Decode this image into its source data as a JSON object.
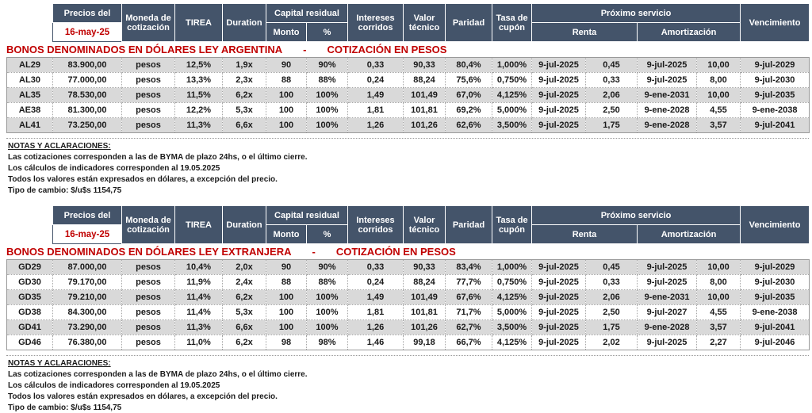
{
  "colors": {
    "header_bg": "#44546A",
    "header_text": "#FFFFFF",
    "accent_red": "#C00000",
    "row_alt_gray": "#D9D9D9",
    "row_white": "#FFFFFF",
    "dotted_border": "#A6A6A6"
  },
  "columns": [
    "ticker",
    "precio",
    "moneda",
    "tirea",
    "duration",
    "capital-monto",
    "capital-pct",
    "intereses-corridos",
    "valor-tecnico",
    "paridad",
    "tasa-cupon",
    "renta-fecha",
    "renta-monto",
    "amortizacion-fecha",
    "amortizacion-monto",
    "vencimiento"
  ],
  "header": {
    "precios_label": "Precios del",
    "price_date": "16-may-25",
    "moneda": "Moneda de cotización",
    "tirea": "TIREA",
    "duration": "Duration",
    "capital_residual": "Capital residual",
    "monto": "Monto",
    "pct": "%",
    "intereses": "Intereses corridos",
    "valor_tecnico": "Valor técnico",
    "paridad": "Paridad",
    "tasa_cupon": "Tasa de cupón",
    "proximo_servicio": "Próximo servicio",
    "renta": "Renta",
    "amortizacion": "Amortización",
    "vencimiento": "Vencimiento"
  },
  "sections": [
    {
      "title_left": "BONOS DENOMINADOS EN DÓLARES LEY ARGENTINA",
      "title_dash": "-",
      "title_right": "COTIZACIÓN EN PESOS",
      "rows": [
        [
          "AL29",
          "83.900,00",
          "pesos",
          "12,5%",
          "1,9x",
          "90",
          "90%",
          "0,33",
          "90,33",
          "80,4%",
          "1,000%",
          "9-jul-2025",
          "0,45",
          "9-jul-2025",
          "10,00",
          "9-jul-2029"
        ],
        [
          "AL30",
          "77.000,00",
          "pesos",
          "13,3%",
          "2,3x",
          "88",
          "88%",
          "0,24",
          "88,24",
          "75,6%",
          "0,750%",
          "9-jul-2025",
          "0,33",
          "9-jul-2025",
          "8,00",
          "9-jul-2030"
        ],
        [
          "AL35",
          "78.530,00",
          "pesos",
          "11,5%",
          "6,2x",
          "100",
          "100%",
          "1,49",
          "101,49",
          "67,0%",
          "4,125%",
          "9-jul-2025",
          "2,06",
          "9-ene-2031",
          "10,00",
          "9-jul-2035"
        ],
        [
          "AE38",
          "81.300,00",
          "pesos",
          "12,2%",
          "5,3x",
          "100",
          "100%",
          "1,81",
          "101,81",
          "69,2%",
          "5,000%",
          "9-jul-2025",
          "2,50",
          "9-ene-2028",
          "4,55",
          "9-ene-2038"
        ],
        [
          "AL41",
          "73.250,00",
          "pesos",
          "11,3%",
          "6,6x",
          "100",
          "100%",
          "1,26",
          "101,26",
          "62,6%",
          "3,500%",
          "9-jul-2025",
          "1,75",
          "9-ene-2028",
          "3,57",
          "9-jul-2041"
        ]
      ]
    },
    {
      "title_left": "BONOS DENOMINADOS EN DÓLARES LEY EXTRANJERA",
      "title_dash": "-",
      "title_right": "COTIZACIÓN EN PESOS",
      "rows": [
        [
          "GD29",
          "87.000,00",
          "pesos",
          "10,4%",
          "2,0x",
          "90",
          "90%",
          "0,33",
          "90,33",
          "83,4%",
          "1,000%",
          "9-jul-2025",
          "0,45",
          "9-jul-2025",
          "10,00",
          "9-jul-2029"
        ],
        [
          "GD30",
          "79.170,00",
          "pesos",
          "11,9%",
          "2,4x",
          "88",
          "88%",
          "0,24",
          "88,24",
          "77,7%",
          "0,750%",
          "9-jul-2025",
          "0,33",
          "9-jul-2025",
          "8,00",
          "9-jul-2030"
        ],
        [
          "GD35",
          "79.210,00",
          "pesos",
          "11,4%",
          "6,2x",
          "100",
          "100%",
          "1,49",
          "101,49",
          "67,6%",
          "4,125%",
          "9-jul-2025",
          "2,06",
          "9-ene-2031",
          "10,00",
          "9-jul-2035"
        ],
        [
          "GD38",
          "84.300,00",
          "pesos",
          "11,4%",
          "5,3x",
          "100",
          "100%",
          "1,81",
          "101,81",
          "71,7%",
          "5,000%",
          "9-jul-2025",
          "2,50",
          "9-jul-2027",
          "4,55",
          "9-ene-2038"
        ],
        [
          "GD41",
          "73.290,00",
          "pesos",
          "11,3%",
          "6,6x",
          "100",
          "100%",
          "1,26",
          "101,26",
          "62,7%",
          "3,500%",
          "9-jul-2025",
          "1,75",
          "9-ene-2028",
          "3,57",
          "9-jul-2041"
        ],
        [
          "GD46",
          "76.380,00",
          "pesos",
          "11,0%",
          "6,2x",
          "98",
          "98%",
          "1,46",
          "99,18",
          "66,7%",
          "4,125%",
          "9-jul-2025",
          "2,02",
          "9-jul-2025",
          "2,27",
          "9-jul-2046"
        ]
      ]
    }
  ],
  "notes": {
    "title": "NOTAS Y ACLARACIONES:",
    "lines": [
      "Las cotizaciones corresponden a las de BYMA de plazo 24hs, o el último cierre.",
      "Los cálculos de indicadores corresponden al 19.05.2025",
      "Todos los valores están expresados en dólares, a excepción del precio.",
      "Tipo de cambio: $/u$s 1154,75"
    ]
  }
}
